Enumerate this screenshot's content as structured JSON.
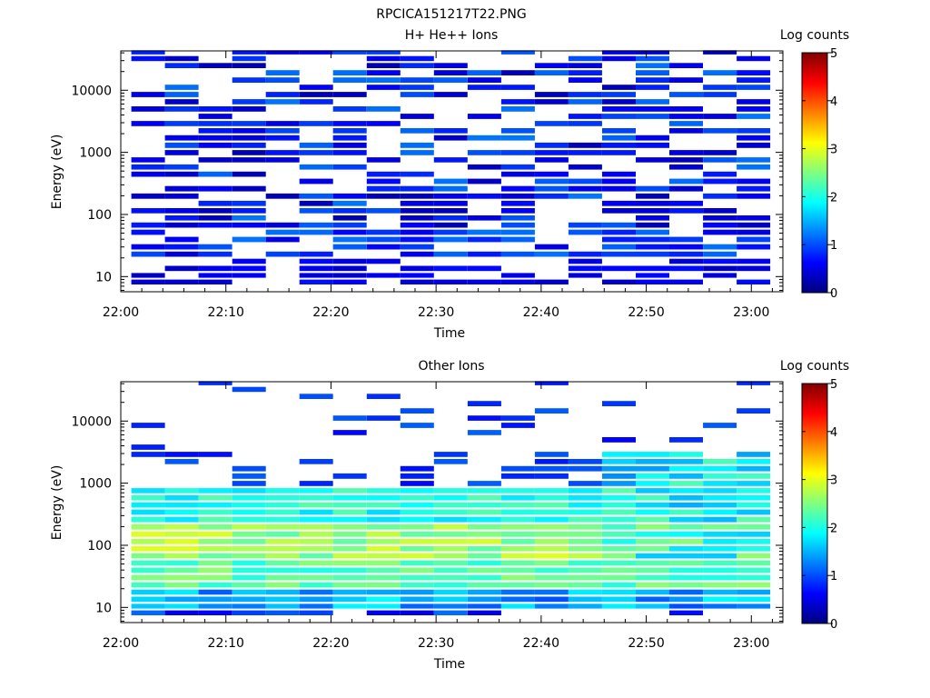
{
  "figure_title": "RPCICA151217T22.PNG",
  "chart_data": [
    {
      "type": "heatmap",
      "title": "H+ He++ Ions",
      "xlabel": "Time",
      "ylabel": "Energy (eV)",
      "x_ticks": [
        "22:00",
        "22:10",
        "22:20",
        "22:30",
        "22:40",
        "22:50",
        "23:00"
      ],
      "xlim_minutes": [
        0,
        63
      ],
      "y_scale": "log",
      "y_ticks": [
        "10",
        "100",
        "1000",
        "10000"
      ],
      "ylim": [
        5.7,
        43000
      ],
      "colorbar": {
        "label": "Log counts",
        "range": [
          0,
          5
        ],
        "ticks": [
          "0",
          "1",
          "2",
          "3",
          "4",
          "5"
        ]
      },
      "time_bins_min": [
        1,
        4.2,
        7.4,
        10.6,
        13.8,
        17,
        20.2,
        23.4,
        26.6,
        29.8,
        33,
        36.2,
        39.4,
        42.6,
        45.8,
        49,
        52.2,
        55.4,
        58.6
      ],
      "energy_bins_eV": [
        8,
        10,
        13,
        17,
        22,
        29,
        38,
        50,
        65,
        85,
        110,
        145,
        190,
        250,
        330,
        430,
        560,
        730,
        950,
        1250,
        1650,
        2150,
        2800,
        3650,
        4800,
        6300,
        8200,
        10800,
        14000,
        18500,
        24000,
        31500,
        40000
      ],
      "values_note": "sparse, log counts mostly 0.2-1.2 above 20 eV; 0.3-0.7 at 8-22 eV"
    },
    {
      "type": "heatmap",
      "title": "Other Ions",
      "xlabel": "Time",
      "ylabel": "Energy (eV)",
      "x_ticks": [
        "22:00",
        "22:10",
        "22:20",
        "22:30",
        "22:40",
        "22:50",
        "23:00"
      ],
      "xlim_minutes": [
        0,
        63
      ],
      "y_scale": "log",
      "y_ticks": [
        "10",
        "100",
        "1000",
        "10000"
      ],
      "ylim": [
        5.7,
        43000
      ],
      "colorbar": {
        "label": "Log counts",
        "range": [
          0,
          5
        ],
        "ticks": [
          "0",
          "1",
          "2",
          "3",
          "4",
          "5"
        ]
      },
      "time_bins_min": [
        1,
        4.2,
        7.4,
        10.6,
        13.8,
        17,
        20.2,
        23.4,
        26.6,
        29.8,
        33,
        36.2,
        39.4,
        42.6,
        45.8,
        49,
        52.2,
        55.4,
        58.6
      ],
      "energy_bins_eV": [
        8,
        10,
        13,
        17,
        22,
        29,
        38,
        50,
        65,
        85,
        110,
        145,
        190,
        250,
        330,
        430,
        560,
        730,
        950,
        1250,
        1650,
        2150,
        2800,
        3650,
        4800,
        6300,
        8200,
        10800,
        14000,
        18500,
        24000,
        31500,
        40000
      ],
      "values_note": "peak ~3.0 log counts near 60-200 eV; ~2.0-2.5 at 20-60 eV; ~1.5-2.3 at 300-800 eV; ~1.8-2.2 at 1-3 keV after 22:45; sparse ~0.5-1 above 3 keV"
    }
  ]
}
